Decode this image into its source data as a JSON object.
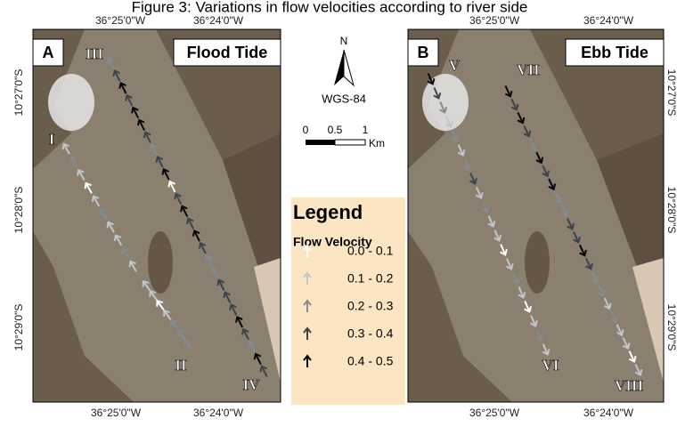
{
  "title": "Figure 3: Variations in flow velocities according to river side",
  "panels": [
    {
      "letter": "A",
      "tide": "Flood Tide",
      "sections": [
        "III",
        "I",
        "II",
        "IV"
      ],
      "top_labels": [
        "36°25'0\"W",
        "36°24'0\"W"
      ],
      "bottom_labels": [
        "36°25'0\"W",
        "36°24'0\"W"
      ],
      "side_labels": [
        "10°27'0\"S",
        "10°28'0\"S",
        "10°29'0\"S"
      ]
    },
    {
      "letter": "B",
      "tide": "Ebb Tide",
      "sections": [
        "V",
        "VII",
        "VI",
        "VIII"
      ],
      "top_labels": [
        "36°25'0\"W",
        "36°24'0\"W"
      ],
      "bottom_labels": [
        "36°25'0\"W",
        "36°24'0\"W"
      ],
      "side_labels": [
        "10°27'0\"S",
        "10°28'0\"S",
        "10°29'0\"S"
      ]
    }
  ],
  "north": {
    "label": "N",
    "datum": "WGS-84"
  },
  "scale": {
    "ticks": [
      "0",
      "0.5",
      "1"
    ],
    "unit": "Km"
  },
  "legend": {
    "title": "Legend",
    "subtitle": "Flow Velocity",
    "classes": [
      {
        "label": "0.0 - 0.1",
        "color": "#ffffff"
      },
      {
        "label": "0.1 - 0.2",
        "color": "#c2c6cb"
      },
      {
        "label": "0.2 - 0.3",
        "color": "#858b91"
      },
      {
        "label": "0.3 - 0.4",
        "color": "#3d4349"
      },
      {
        "label": "0.4 - 0.5",
        "color": "#05070a"
      }
    ]
  }
}
